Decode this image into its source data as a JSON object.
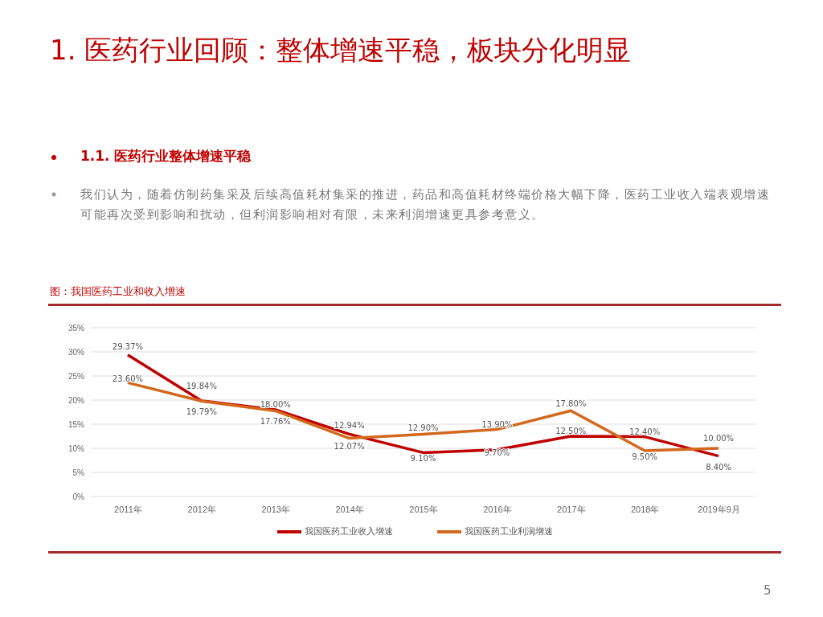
{
  "chart_data": {
    "type": "line",
    "title": "1. 医药行业回顾：整体增速平稳，板块分化明显",
    "subtitle": "1.1. 医药行业整体增速平稳",
    "annotations": [
      "我们认为，随着仿制药集采及后续高值耗材集采的推进，药品和高值耗材终端价格大幅下降，医药工业收入端表观增速可能再次受到影响和扰动，但利润影响相对有限，未来利润增速更具参考意义。",
      "图：我国医药工业和收入增速",
      "5"
    ],
    "categories": [
      "2011年",
      "2012年",
      "2013年",
      "2014年",
      "2015年",
      "2016年",
      "2017年",
      "2018年",
      "2019年9月"
    ],
    "series": [
      {
        "name": "我国医药工业收入增速",
        "color": "#c00000",
        "values": [
          29.37,
          19.84,
          18.0,
          12.94,
          9.1,
          9.7,
          12.5,
          12.4,
          8.4
        ],
        "value_labels": [
          "29.37%",
          "19.84%",
          "18.00%",
          "12.94%",
          "9.10%",
          "9.70%",
          "12.50%",
          "12.40%",
          "8.40%"
        ]
      },
      {
        "name": "我国医药工业利润增速",
        "color": "#d2691e",
        "values": [
          23.6,
          19.79,
          17.76,
          12.07,
          12.9,
          13.9,
          17.8,
          9.5,
          10.0
        ],
        "value_labels": [
          "23.60%",
          "19.79%",
          "17.76%",
          "12.07%",
          "12.90%",
          "13.90%",
          "17.80%",
          "9.50%",
          "10.00%"
        ]
      }
    ],
    "ylim": [
      0,
      35
    ],
    "yticks": [
      {
        "value": 0,
        "label": "0%"
      },
      {
        "value": 5,
        "label": "5%"
      },
      {
        "value": 10,
        "label": "10%"
      },
      {
        "value": 15,
        "label": "15%"
      },
      {
        "value": 20,
        "label": "20%"
      },
      {
        "value": 25,
        "label": "25%"
      },
      {
        "value": 30,
        "label": "30%"
      },
      {
        "value": 35,
        "label": "35%"
      }
    ],
    "grid": "y",
    "legend": "bottom",
    "marker": "none",
    "line_style": "solid"
  }
}
